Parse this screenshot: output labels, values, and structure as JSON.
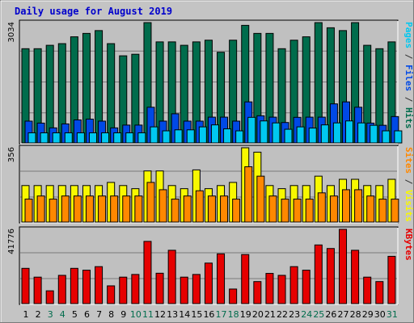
{
  "chart_data": {
    "type": "bar",
    "title": "Daily usage for August 2019",
    "categories": [
      "1",
      "2",
      "3",
      "4",
      "5",
      "6",
      "7",
      "8",
      "9",
      "10",
      "11",
      "12",
      "13",
      "14",
      "15",
      "16",
      "17",
      "18",
      "19",
      "20",
      "21",
      "22",
      "23",
      "24",
      "25",
      "26",
      "27",
      "28",
      "29",
      "30",
      "31"
    ],
    "weekend_days": [
      "3",
      "4",
      "10",
      "11",
      "17",
      "18",
      "24",
      "25",
      "31"
    ],
    "colors": {
      "hits": "#006c4c",
      "files": "#0049e6",
      "pages": "#00c8f0",
      "visits": "#f8f800",
      "sites": "#ff8800",
      "kbytes": "#e60000",
      "plot_bg": "#c0c0c0",
      "frame_bg": "#c4c4c4",
      "weekday_label": "#000000",
      "weekend_label": "#006c4c"
    },
    "panels": [
      {
        "id": "hits-files-pages",
        "ymax_label": "3034",
        "ylim": [
          0,
          3034
        ],
        "side_label": [
          "Pages",
          " / ",
          "Files",
          " / ",
          "Hits"
        ],
        "side_colors": [
          "#00c8f0",
          "#333333",
          "#0049e6",
          "#333333",
          "#006c4c"
        ],
        "series": [
          {
            "name": "Hits",
            "color": "#006c4c",
            "values": [
              2376,
              2376,
              2462,
              2504,
              2676,
              2762,
              2833,
              2504,
              2197,
              2236,
              3034,
              2548,
              2548,
              2462,
              2548,
              2591,
              2287,
              2591,
              2965,
              2762,
              2762,
              2376,
              2591,
              2676,
              3034,
              2904,
              2833,
              3034,
              2462,
              2376,
              2548
            ]
          },
          {
            "name": "Files",
            "color": "#0049e6",
            "values": [
              550,
              500,
              380,
              480,
              580,
              600,
              550,
              380,
              450,
              450,
              900,
              550,
              735,
              550,
              550,
              650,
              650,
              550,
              1035,
              685,
              650,
              515,
              645,
              650,
              650,
              985,
              1035,
              900,
              500,
              445,
              665
            ]
          },
          {
            "name": "Pages",
            "color": "#00c8f0",
            "values": [
              255,
              255,
              255,
              255,
              255,
              255,
              255,
              255,
              255,
              255,
              405,
              305,
              330,
              330,
              405,
              455,
              355,
              305,
              645,
              555,
              505,
              345,
              405,
              375,
              455,
              505,
              555,
              505,
              445,
              305,
              305
            ]
          }
        ]
      },
      {
        "id": "visits-sites",
        "ymax_label": "356",
        "ylim": [
          0,
          356
        ],
        "side_label": [
          "Sites",
          " / ",
          "Visits"
        ],
        "side_colors": [
          "#ff8800",
          "#333333",
          "#f8f800"
        ],
        "series": [
          {
            "name": "Visits",
            "color": "#f8f800",
            "values": [
              175,
              175,
              175,
              175,
              175,
              175,
              175,
              190,
              175,
              160,
              245,
              245,
              175,
              160,
              250,
              160,
              175,
              190,
              356,
              335,
              175,
              160,
              175,
              175,
              220,
              175,
              205,
              205,
              175,
              175,
              205
            ]
          },
          {
            "name": "Sites",
            "color": "#ff8800",
            "values": [
              110,
              125,
              110,
              125,
              125,
              125,
              125,
              125,
              125,
              125,
              190,
              155,
              110,
              125,
              150,
              125,
              125,
              110,
              265,
              220,
              125,
              110,
              110,
              110,
              140,
              125,
              155,
              155,
              125,
              110,
              110
            ]
          }
        ]
      },
      {
        "id": "kbytes",
        "ymax_label": "41776",
        "ylim": [
          0,
          41776
        ],
        "side_label": [
          "KBytes"
        ],
        "side_colors": [
          "#e60000"
        ],
        "series": [
          {
            "name": "KBytes",
            "color": "#e60000",
            "values": [
              19844,
              14900,
              7200,
              15900,
              19844,
              18800,
              20800,
              10000,
              14900,
              16400,
              35000,
              17100,
              30000,
              14900,
              16400,
              22800,
              28000,
              8200,
              27600,
              12400,
              17000,
              15900,
              20800,
              18800,
              33000,
              31000,
              41776,
              30000,
              14900,
              12400,
              26600
            ]
          }
        ]
      }
    ]
  }
}
